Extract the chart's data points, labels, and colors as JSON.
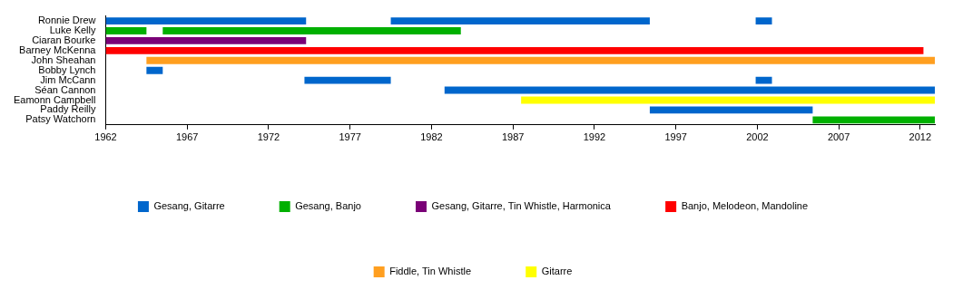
{
  "chart_data": {
    "type": "bar",
    "orientation": "horizontal",
    "categories": [
      "Ronnie Drew",
      "Luke Kelly",
      "Ciaran Bourke",
      "Barney McKenna",
      "John Sheahan",
      "Bobby Lynch",
      "Jim McCann",
      "Séan Cannon",
      "Eamonn Campbell",
      "Paddy Reilly",
      "Patsy Watchorn"
    ],
    "xlim": [
      1962,
      2012.9
    ],
    "xticks": [
      1962,
      1967,
      1972,
      1977,
      1982,
      1987,
      1992,
      1997,
      2002,
      2007,
      2012
    ],
    "legend": "bottom",
    "series": [
      {
        "name": "Gesang, Gitarre",
        "color": "#0066cc",
        "base": [
          1962,
          null,
          null,
          null,
          null,
          1964.5,
          1974.2,
          1982.8,
          null,
          1995.4,
          null
        ],
        "values": [
          12.3,
          null,
          null,
          null,
          null,
          1.0,
          5.3,
          30.1,
          null,
          10.0,
          null
        ]
      },
      {
        "color": "#0066cc",
        "base": [
          1979.5,
          null,
          null,
          null,
          null,
          null,
          2001.9,
          null,
          null,
          null,
          null
        ],
        "values": [
          15.9,
          null,
          null,
          null,
          null,
          null,
          1.0,
          null,
          null,
          null,
          null
        ]
      },
      {
        "color": "#0066cc",
        "base": [
          2001.9,
          null,
          null,
          null,
          null,
          null,
          null,
          null,
          null,
          null,
          null
        ],
        "values": [
          1.0,
          null,
          null,
          null,
          null,
          null,
          null,
          null,
          null,
          null,
          null
        ]
      },
      {
        "name": "Gesang, Banjo",
        "color": "#00b000",
        "base": [
          null,
          1962,
          null,
          null,
          null,
          null,
          null,
          null,
          null,
          null,
          2005.4
        ],
        "values": [
          null,
          2.5,
          null,
          null,
          null,
          null,
          null,
          null,
          null,
          null,
          7.5
        ]
      },
      {
        "color": "#00b000",
        "base": [
          null,
          1965.5,
          null,
          null,
          null,
          null,
          null,
          null,
          null,
          null,
          null
        ],
        "values": [
          null,
          18.3,
          null,
          null,
          null,
          null,
          null,
          null,
          null,
          null,
          null
        ]
      },
      {
        "name": "Gesang, Gitarre, Tin Whistle, Harmonica",
        "color": "#7a0077",
        "base": [
          null,
          null,
          1962,
          null,
          null,
          null,
          null,
          null,
          null,
          null,
          null
        ],
        "values": [
          null,
          null,
          12.3,
          null,
          null,
          null,
          null,
          null,
          null,
          null,
          null
        ]
      },
      {
        "name": "Banjo, Melodeon, Mandoline",
        "color": "#ff0000",
        "base": [
          null,
          null,
          null,
          1962,
          null,
          null,
          null,
          null,
          null,
          null,
          null
        ],
        "values": [
          null,
          null,
          null,
          50.2,
          null,
          null,
          null,
          null,
          null,
          null,
          null
        ]
      },
      {
        "name": "Fiddle, Tin Whistle",
        "color": "#ff9f20",
        "base": [
          null,
          null,
          null,
          null,
          1964.5,
          null,
          null,
          null,
          null,
          null,
          null
        ],
        "values": [
          null,
          null,
          null,
          null,
          48.4,
          null,
          null,
          null,
          null,
          null,
          null
        ]
      },
      {
        "name": "Gitarre",
        "color": "#ffff00",
        "base": [
          null,
          null,
          null,
          null,
          null,
          null,
          null,
          null,
          1987.5,
          null,
          null
        ],
        "values": [
          null,
          null,
          null,
          null,
          null,
          null,
          null,
          null,
          25.4,
          null,
          null
        ]
      }
    ]
  }
}
